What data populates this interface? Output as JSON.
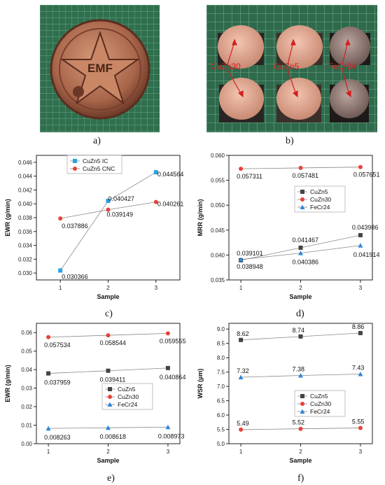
{
  "captions": [
    "a)",
    "b)",
    "c)",
    "d)",
    "e)",
    "f)"
  ],
  "photo_a": {
    "emblem_text": "EMF"
  },
  "photo_b": {
    "labels": [
      "CuZn30",
      "CuZn5",
      "FeCr24"
    ],
    "label_color": "#d32020"
  },
  "chart_data": [
    {
      "type": "line",
      "id": "c",
      "xlabel": "Sample",
      "ylabel": "EWR (g/min)",
      "x": [
        1,
        2,
        3
      ],
      "xlim": [
        0.5,
        3.5
      ],
      "ylim": [
        0.029,
        0.047
      ],
      "yticks": [
        0.03,
        0.032,
        0.034,
        0.036,
        0.038,
        0.04,
        0.042,
        0.044,
        0.046
      ],
      "ytick_labels": [
        "0.030",
        "0.032",
        "0.034",
        "0.036",
        "0.038",
        "0.040",
        "0.042",
        "0.044",
        "0.046"
      ],
      "legend_position": "top-center",
      "series": [
        {
          "name": "CuZn5 IC",
          "values": [
            0.030366,
            0.040427,
            0.044564
          ],
          "labels": [
            "0.030366",
            "0.040427",
            "0.044564"
          ],
          "color": "#29a3e0",
          "marker": "square"
        },
        {
          "name": "CuZn5 CNC",
          "values": [
            0.037886,
            0.039149,
            0.040261
          ],
          "labels": [
            "0.037886",
            "0.039149",
            "0.040261"
          ],
          "color": "#e8413b",
          "marker": "circle"
        }
      ]
    },
    {
      "type": "line",
      "id": "d",
      "xlabel": "Sample",
      "ylabel": "MRR (g/min)",
      "x": [
        1,
        2,
        3
      ],
      "xlim": [
        0.8,
        3.2
      ],
      "ylim": [
        0.035,
        0.06
      ],
      "yticks": [
        0.035,
        0.04,
        0.045,
        0.05,
        0.055,
        0.06
      ],
      "ytick_labels": [
        "0.035",
        "0.040",
        "0.045",
        "0.050",
        "0.055",
        "0.060"
      ],
      "legend_position": "center-right",
      "series": [
        {
          "name": "CuZn5",
          "values": [
            0.038948,
            0.041467,
            0.043986
          ],
          "labels": [
            "0.038948",
            "0.041467",
            "0.043986"
          ],
          "color": "#444444",
          "marker": "square"
        },
        {
          "name": "CuZn30",
          "values": [
            0.057311,
            0.057481,
            0.057651
          ],
          "labels": [
            "0.057311",
            "0.057481",
            "0.057651"
          ],
          "color": "#e8413b",
          "marker": "circle"
        },
        {
          "name": "FeCr24",
          "values": [
            0.039101,
            0.040386,
            0.041914
          ],
          "labels": [
            "0.039101",
            "0.040386",
            "0.041914"
          ],
          "color": "#2f86d8",
          "marker": "triangle"
        }
      ]
    },
    {
      "type": "line",
      "id": "e",
      "xlabel": "Sample",
      "ylabel": "EWR (g/min)",
      "x": [
        1,
        2,
        3
      ],
      "xlim": [
        0.8,
        3.2
      ],
      "ylim": [
        0.0,
        0.065
      ],
      "yticks": [
        0.0,
        0.01,
        0.02,
        0.03,
        0.04,
        0.05,
        0.06
      ],
      "ytick_labels": [
        "0.00",
        "0.01",
        "0.02",
        "0.03",
        "0.04",
        "0.05",
        "0.06"
      ],
      "legend_position": "center-right",
      "series": [
        {
          "name": "CuZn5",
          "values": [
            0.037959,
            0.039411,
            0.040864
          ],
          "labels": [
            "0.037959",
            "0.039411",
            "0.040864"
          ],
          "color": "#444444",
          "marker": "square"
        },
        {
          "name": "CuZn30",
          "values": [
            0.057534,
            0.058544,
            0.059555
          ],
          "labels": [
            "0.057534",
            "0.058544",
            "0.059555"
          ],
          "color": "#e8413b",
          "marker": "circle"
        },
        {
          "name": "FeCr24",
          "values": [
            0.008263,
            0.008618,
            0.008973
          ],
          "labels": [
            "0.008263",
            "0.008618",
            "0.008973"
          ],
          "color": "#2f86d8",
          "marker": "triangle"
        }
      ]
    },
    {
      "type": "line",
      "id": "f",
      "xlabel": "Sample",
      "ylabel": "WSR (µm)",
      "x": [
        1,
        2,
        3
      ],
      "xlim": [
        0.8,
        3.2
      ],
      "ylim": [
        5.0,
        9.2
      ],
      "yticks": [
        5.0,
        5.5,
        6.0,
        6.5,
        7.0,
        7.5,
        8.0,
        8.5,
        9.0
      ],
      "ytick_labels": [
        "5.0",
        "5.5",
        "6.0",
        "6.5",
        "7.0",
        "7.5",
        "8.0",
        "8.5",
        "9.0"
      ],
      "legend_position": "center-right",
      "series": [
        {
          "name": "CuZn5",
          "values": [
            8.62,
            8.74,
            8.86
          ],
          "labels": [
            "8.62",
            "8.74",
            "8.86"
          ],
          "color": "#444444",
          "marker": "square"
        },
        {
          "name": "CuZn30",
          "values": [
            5.49,
            5.52,
            5.55
          ],
          "labels": [
            "5.49",
            "5.52",
            "5.55"
          ],
          "color": "#e8413b",
          "marker": "circle"
        },
        {
          "name": "FeCr24",
          "values": [
            7.32,
            7.38,
            7.43
          ],
          "labels": [
            "7.32",
            "7.38",
            "7.43"
          ],
          "color": "#2f86d8",
          "marker": "triangle"
        }
      ]
    }
  ]
}
